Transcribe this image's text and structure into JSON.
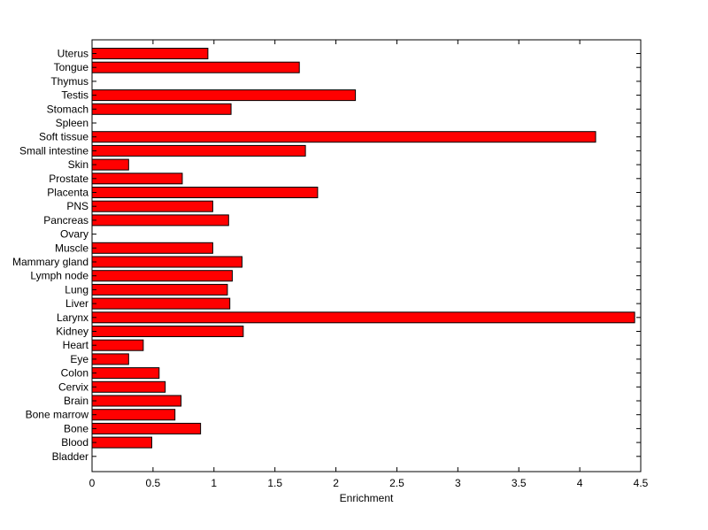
{
  "chart_data": {
    "type": "bar",
    "orientation": "horizontal",
    "title": "",
    "xlabel": "Enrichment",
    "ylabel": "",
    "xlim": [
      0,
      4.5
    ],
    "xticks": [
      0,
      0.5,
      1,
      1.5,
      2,
      2.5,
      3,
      3.5,
      4,
      4.5
    ],
    "xtick_labels": [
      "0",
      "0.5",
      "1",
      "1.5",
      "2",
      "2.5",
      "3",
      "3.5",
      "4",
      "4.5"
    ],
    "grid": false,
    "legend": "none",
    "bar_color": "#ff0000",
    "edge_color": "#000000",
    "categories": [
      "Uterus",
      "Tongue",
      "Thymus",
      "Testis",
      "Stomach",
      "Spleen",
      "Soft tissue",
      "Small intestine",
      "Skin",
      "Prostate",
      "Placenta",
      "PNS",
      "Pancreas",
      "Ovary",
      "Muscle",
      "Mammary gland",
      "Lymph node",
      "Lung",
      "Liver",
      "Larynx",
      "Kidney",
      "Heart",
      "Eye",
      "Colon",
      "Cervix",
      "Brain",
      "Bone marrow",
      "Bone",
      "Blood",
      "Bladder"
    ],
    "values": [
      0.95,
      1.7,
      0,
      2.16,
      1.14,
      0,
      4.13,
      1.75,
      0.3,
      0.74,
      1.85,
      0.99,
      1.12,
      0,
      0.99,
      1.23,
      1.15,
      1.11,
      1.13,
      4.45,
      1.24,
      0.42,
      0.3,
      0.55,
      0.6,
      0.73,
      0.68,
      0.89,
      0.49,
      0
    ]
  }
}
